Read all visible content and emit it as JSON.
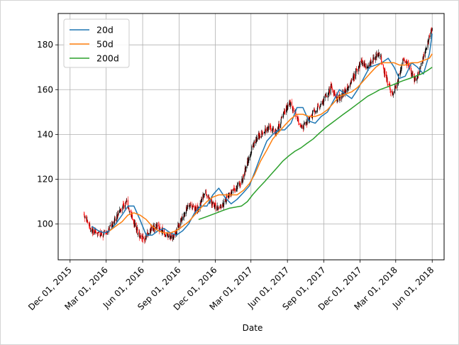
{
  "chart_data": {
    "type": "line",
    "title": "",
    "xlabel": "Date",
    "ylabel": "",
    "xlim": [
      "2015-11-01",
      "2018-07-01"
    ],
    "ylim": [
      84,
      194
    ],
    "grid": true,
    "legend_position": "top-left",
    "x_ticks": [
      "2015-12-01",
      "2016-03-01",
      "2016-06-01",
      "2016-09-01",
      "2016-12-01",
      "2017-03-01",
      "2017-06-01",
      "2017-09-01",
      "2017-12-01",
      "2018-03-01",
      "2018-06-01"
    ],
    "x_tick_labels": [
      "Dec 01, 2015",
      "Mar 01, 2016",
      "Jun 01, 2016",
      "Sep 01, 2016",
      "Dec 01, 2016",
      "Mar 01, 2017",
      "Jun 01, 2017",
      "Sep 01, 2017",
      "Dec 01, 2017",
      "Mar 01, 2018",
      "Jun 01, 2018"
    ],
    "y_ticks": [
      100,
      120,
      140,
      160,
      180
    ],
    "y_tick_labels": [
      "100",
      "120",
      "140",
      "160",
      "180"
    ],
    "colors": {
      "up_candle": "#000000",
      "down_candle": "#ff0000"
    },
    "price_series": {
      "name": "",
      "x": [
        "2016-01-05",
        "2016-01-20",
        "2016-02-05",
        "2016-02-20",
        "2016-03-05",
        "2016-03-20",
        "2016-04-05",
        "2016-04-20",
        "2016-05-05",
        "2016-05-20",
        "2016-06-05",
        "2016-06-20",
        "2016-07-05",
        "2016-07-20",
        "2016-08-05",
        "2016-08-20",
        "2016-09-05",
        "2016-09-20",
        "2016-10-05",
        "2016-10-20",
        "2016-11-05",
        "2016-11-20",
        "2016-12-05",
        "2016-12-20",
        "2017-01-05",
        "2017-01-20",
        "2017-02-05",
        "2017-02-20",
        "2017-03-05",
        "2017-03-20",
        "2017-04-05",
        "2017-04-20",
        "2017-05-05",
        "2017-05-20",
        "2017-06-05",
        "2017-06-20",
        "2017-07-05",
        "2017-07-20",
        "2017-08-05",
        "2017-08-20",
        "2017-09-05",
        "2017-09-20",
        "2017-10-05",
        "2017-10-20",
        "2017-11-05",
        "2017-11-20",
        "2017-12-05",
        "2017-12-20",
        "2018-01-05",
        "2018-01-20",
        "2018-02-05",
        "2018-02-20",
        "2018-03-05",
        "2018-03-20",
        "2018-04-05",
        "2018-04-20",
        "2018-05-05",
        "2018-05-20",
        "2018-06-01"
      ],
      "values": [
        104,
        98,
        96,
        95,
        97,
        101,
        106,
        110,
        103,
        96,
        93,
        97,
        99,
        97,
        94,
        95,
        101,
        107,
        108,
        106,
        115,
        110,
        107,
        109,
        113,
        116,
        119,
        127,
        135,
        139,
        142,
        143,
        141,
        148,
        154,
        150,
        143,
        145,
        150,
        152,
        157,
        161,
        156,
        158,
        163,
        167,
        172,
        170,
        174,
        176,
        165,
        158,
        163,
        174,
        170,
        163,
        172,
        180,
        188
      ]
    },
    "series": [
      {
        "name": "20d",
        "color": "#1f77b4",
        "x": [
          "2016-01-25",
          "2016-02-10",
          "2016-02-25",
          "2016-03-10",
          "2016-03-25",
          "2016-04-10",
          "2016-04-25",
          "2016-05-10",
          "2016-05-25",
          "2016-06-10",
          "2016-06-25",
          "2016-07-10",
          "2016-07-25",
          "2016-08-10",
          "2016-08-25",
          "2016-09-10",
          "2016-09-25",
          "2016-10-10",
          "2016-10-25",
          "2016-11-10",
          "2016-11-25",
          "2016-12-10",
          "2016-12-25",
          "2017-01-10",
          "2017-01-25",
          "2017-02-10",
          "2017-02-25",
          "2017-03-10",
          "2017-03-25",
          "2017-04-10",
          "2017-04-25",
          "2017-05-10",
          "2017-05-25",
          "2017-06-10",
          "2017-06-25",
          "2017-07-10",
          "2017-07-25",
          "2017-08-10",
          "2017-08-25",
          "2017-09-10",
          "2017-09-25",
          "2017-10-10",
          "2017-10-25",
          "2017-11-10",
          "2017-11-25",
          "2017-12-10",
          "2017-12-25",
          "2018-01-10",
          "2018-01-25",
          "2018-02-10",
          "2018-02-25",
          "2018-03-10",
          "2018-03-25",
          "2018-04-10",
          "2018-04-25",
          "2018-05-10",
          "2018-05-25",
          "2018-06-01"
        ],
        "values": [
          99,
          97,
          96,
          97,
          100,
          104,
          108,
          108,
          102,
          95,
          95,
          97,
          98,
          96,
          95,
          97,
          100,
          105,
          108,
          108,
          113,
          116,
          112,
          109,
          111,
          114,
          117,
          123,
          130,
          137,
          140,
          142,
          142,
          145,
          152,
          152,
          146,
          145,
          148,
          150,
          155,
          160,
          158,
          156,
          160,
          165,
          170,
          171,
          172,
          174,
          170,
          165,
          166,
          172,
          170,
          167,
          176,
          185
        ]
      },
      {
        "name": "50d",
        "color": "#ff7f0e",
        "x": [
          "2016-03-10",
          "2016-03-25",
          "2016-04-10",
          "2016-04-25",
          "2016-05-10",
          "2016-05-25",
          "2016-06-10",
          "2016-06-25",
          "2016-07-10",
          "2016-07-25",
          "2016-08-10",
          "2016-08-25",
          "2016-09-10",
          "2016-09-25",
          "2016-10-10",
          "2016-10-25",
          "2016-11-10",
          "2016-11-25",
          "2016-12-10",
          "2016-12-25",
          "2017-01-10",
          "2017-01-25",
          "2017-02-10",
          "2017-02-25",
          "2017-03-10",
          "2017-03-25",
          "2017-04-10",
          "2017-04-25",
          "2017-05-10",
          "2017-05-25",
          "2017-06-10",
          "2017-06-25",
          "2017-07-10",
          "2017-07-25",
          "2017-08-10",
          "2017-08-25",
          "2017-09-10",
          "2017-09-25",
          "2017-10-10",
          "2017-10-25",
          "2017-11-10",
          "2017-11-25",
          "2017-12-10",
          "2017-12-25",
          "2018-01-10",
          "2018-01-25",
          "2018-02-10",
          "2018-02-25",
          "2018-03-10",
          "2018-03-25",
          "2018-04-10",
          "2018-04-25",
          "2018-05-10",
          "2018-05-25",
          "2018-06-01"
        ],
        "values": [
          97,
          99,
          101,
          104,
          105,
          104,
          102,
          99,
          97,
          96,
          96,
          97,
          99,
          101,
          104,
          107,
          110,
          112,
          113,
          113,
          113,
          113,
          115,
          118,
          122,
          128,
          133,
          138,
          141,
          144,
          147,
          149,
          149,
          148,
          148,
          149,
          151,
          154,
          157,
          158,
          159,
          161,
          164,
          167,
          170,
          172,
          172,
          172,
          171,
          171,
          172,
          172,
          173,
          174,
          176
        ]
      },
      {
        "name": "200d",
        "color": "#2ca02c",
        "x": [
          "2016-10-20",
          "2016-11-05",
          "2016-11-20",
          "2016-12-05",
          "2016-12-20",
          "2017-01-05",
          "2017-01-20",
          "2017-02-05",
          "2017-02-20",
          "2017-03-05",
          "2017-03-20",
          "2017-04-05",
          "2017-04-20",
          "2017-05-05",
          "2017-05-20",
          "2017-06-05",
          "2017-06-20",
          "2017-07-05",
          "2017-07-20",
          "2017-08-05",
          "2017-08-20",
          "2017-09-05",
          "2017-09-20",
          "2017-10-05",
          "2017-10-20",
          "2017-11-05",
          "2017-11-20",
          "2017-12-05",
          "2017-12-20",
          "2018-01-05",
          "2018-01-20",
          "2018-02-05",
          "2018-02-20",
          "2018-03-05",
          "2018-03-20",
          "2018-04-05",
          "2018-04-20",
          "2018-05-05",
          "2018-05-20",
          "2018-06-01"
        ],
        "values": [
          102,
          103,
          104,
          105,
          106,
          107,
          107.5,
          108,
          110,
          113,
          116,
          119,
          122,
          125,
          128,
          130.5,
          132.5,
          134,
          136,
          138,
          140.5,
          143,
          145,
          147,
          149,
          151,
          153,
          155,
          157,
          158.5,
          160,
          161,
          162,
          163,
          164,
          165,
          166,
          167,
          168.5,
          170
        ]
      }
    ]
  }
}
